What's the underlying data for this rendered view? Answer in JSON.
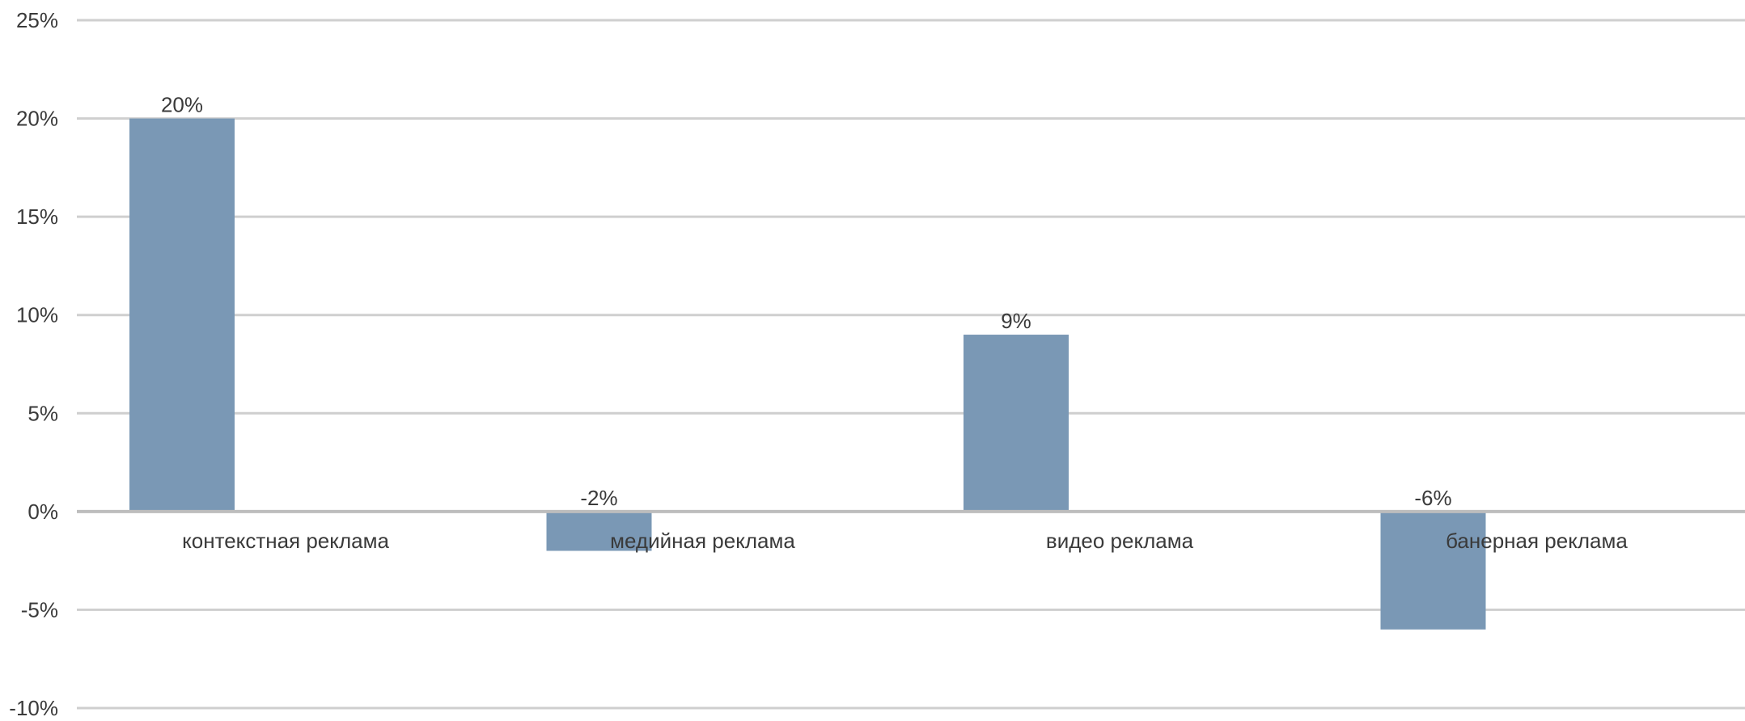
{
  "chart_data": {
    "type": "bar",
    "categories": [
      "контекстная реклама",
      "медийная реклама",
      "видео реклама",
      "банерная реклама"
    ],
    "values": [
      20,
      -2,
      9,
      -6
    ],
    "data_labels": [
      "20%",
      "-2%",
      "9%",
      "-6%"
    ],
    "y_ticks": [
      25,
      20,
      15,
      10,
      5,
      0,
      -5,
      -10
    ],
    "y_tick_labels": [
      "25%",
      "20%",
      "15%",
      "10%",
      "5%",
      "0%",
      "-5%",
      "-10%"
    ],
    "ylim": [
      -10,
      25
    ],
    "grid": true,
    "legend": "none",
    "bar_color": "#7a98b5"
  }
}
